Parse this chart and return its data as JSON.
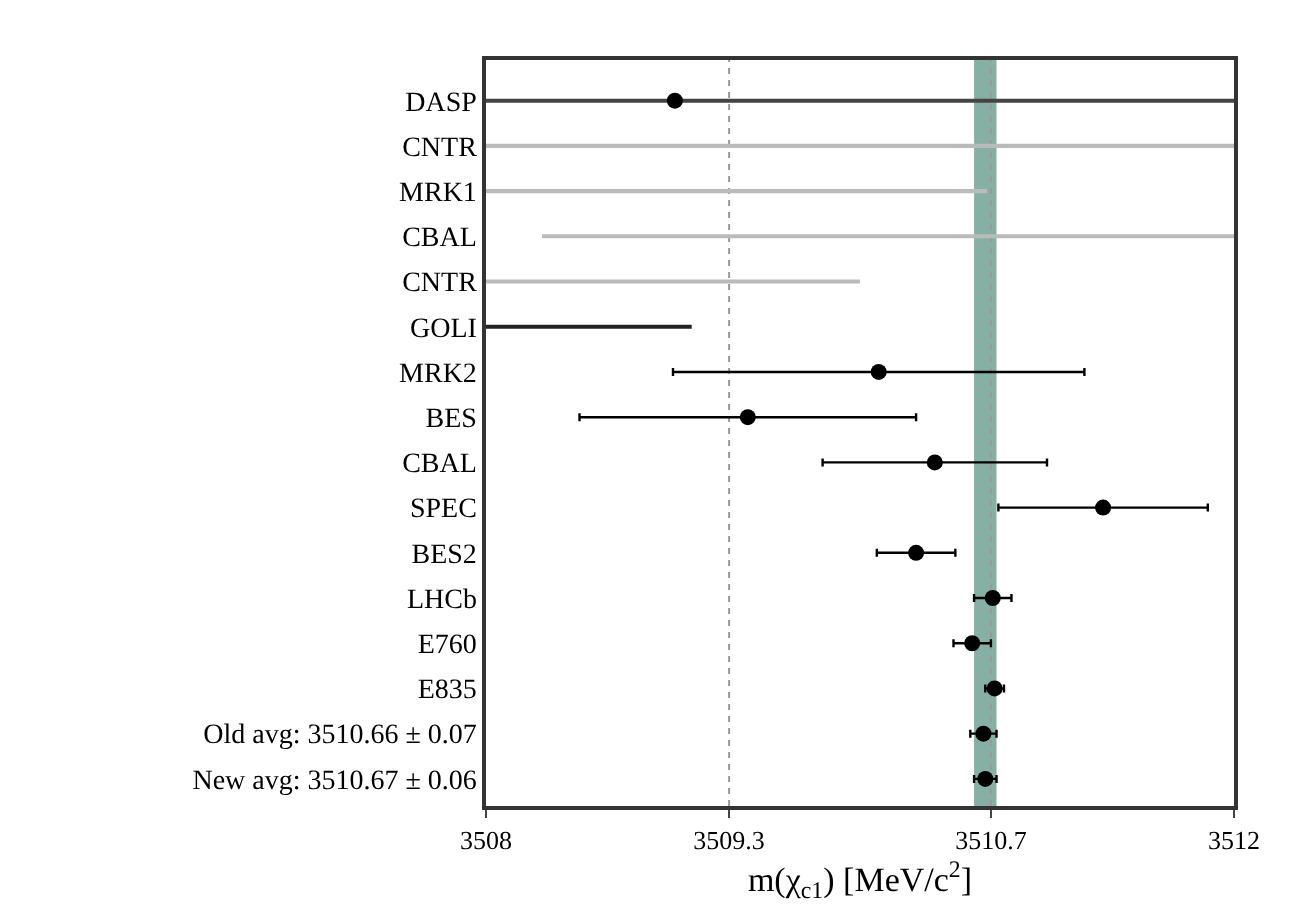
{
  "chart_data": {
    "type": "scatter",
    "orientation": "horizontal",
    "xlabel": "m(χ$_{c1}$) [MeV/c$^{2}$]",
    "categories": [
      "DASP",
      "CNTR",
      "MRK1",
      "CBAL",
      "CNTR",
      "GOLI",
      "MRK2",
      "BES",
      "CBAL",
      "SPEC",
      "BES2",
      "LHCb",
      "E760",
      "E835",
      "Old avg: 3510.66 ± 0.07",
      "New avg: 3510.67 ± 0.06"
    ],
    "series": [
      {
        "type": "bar",
        "colors": [
          "#444444",
          "#bbbbbb",
          "#bbbbbb",
          "#bbbbbb",
          "#bbbbbb",
          "#222222",
          null,
          null,
          null,
          null,
          null,
          null,
          null,
          null,
          null,
          null
        ],
        "base": [
          3508,
          3508,
          3508,
          3508.3,
          3508,
          3508,
          null,
          null,
          null,
          null,
          null,
          null,
          null,
          null,
          null,
          null
        ],
        "values": [
          4,
          4,
          2.68,
          3.7,
          2.0,
          1.1,
          null,
          null,
          null,
          null,
          null,
          null,
          null,
          null,
          null,
          null
        ]
      },
      {
        "color": "#000000",
        "values": [
          3509.01,
          null,
          null,
          null,
          null,
          null,
          3510.1,
          3509.4,
          3510.4,
          3511.3,
          3510.3,
          3510.71,
          3510.6,
          3510.72,
          3510.66,
          3510.67
        ],
        "errors": [
          null,
          null,
          null,
          null,
          null,
          null,
          1.1,
          0.9,
          0.6,
          0.56,
          0.21,
          0.1,
          0.1,
          0.05,
          0.07,
          0.06
        ]
      }
    ],
    "xlim": [
      3508,
      3512
    ],
    "xticks": [
      3508,
      3509.3,
      3510.7,
      3512
    ],
    "marker": "circle",
    "grid": false,
    "ref_lines": [
      {
        "axis": "x",
        "value": 3509.3,
        "color": "#999999",
        "line_style": "dotted"
      },
      {
        "axis": "x",
        "value": 3510.7,
        "color": "#999999",
        "line_style": "dotted"
      }
    ],
    "bands": [
      {
        "axis": "x",
        "from": 3510.61,
        "to": 3510.73,
        "color": "#86b0a4"
      }
    ]
  }
}
